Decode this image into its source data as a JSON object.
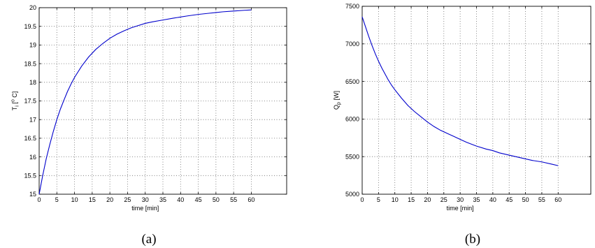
{
  "chart_data": [
    {
      "type": "line",
      "caption": "(a)",
      "xlabel": "time [min]",
      "ylabel": {
        "main": "T",
        "sub": "i",
        "rest": " [",
        "sup": "o",
        "unit": " C]"
      },
      "xlim": [
        0,
        70
      ],
      "ylim": [
        15,
        20
      ],
      "xticks": [
        0,
        5,
        10,
        15,
        20,
        25,
        30,
        35,
        40,
        45,
        50,
        55,
        60
      ],
      "xtick_labels": [
        "0",
        "5",
        "10",
        "15",
        "20",
        "25",
        "30",
        "35",
        "40",
        "45",
        "50",
        "55",
        "60"
      ],
      "yticks": [
        15,
        15.5,
        16,
        16.5,
        17,
        17.5,
        18,
        18.5,
        19,
        19.5,
        20
      ],
      "ytick_labels": [
        "15",
        "15.5",
        "16",
        "16.5",
        "17",
        "17.5",
        "18",
        "18.5",
        "19",
        "19.5",
        "20"
      ],
      "grid": true,
      "line_color": "#0000cc",
      "series": [
        {
          "x": [
            0,
            1,
            2,
            3,
            4,
            5,
            6,
            7,
            8,
            9,
            10,
            12,
            14,
            16,
            18,
            20,
            22,
            24,
            26,
            28,
            30,
            32,
            35,
            38,
            40,
            42,
            45,
            48,
            50,
            52,
            55,
            58,
            60
          ],
          "values": [
            15.0,
            15.5,
            15.95,
            16.33,
            16.68,
            17.0,
            17.28,
            17.52,
            17.75,
            17.95,
            18.13,
            18.43,
            18.68,
            18.88,
            19.04,
            19.18,
            19.29,
            19.38,
            19.46,
            19.52,
            19.58,
            19.62,
            19.67,
            19.72,
            19.75,
            19.78,
            19.82,
            19.85,
            19.87,
            19.89,
            19.91,
            19.93,
            19.94
          ]
        }
      ]
    },
    {
      "type": "line",
      "caption": "(b)",
      "xlabel": "time [min]",
      "ylabel": {
        "main": "Q",
        "sub": "p",
        "rest": " [W]",
        "sup": "",
        "unit": ""
      },
      "xlim": [
        0,
        70
      ],
      "ylim": [
        5000,
        7500
      ],
      "xticks": [
        0,
        5,
        10,
        15,
        20,
        25,
        30,
        35,
        40,
        45,
        50,
        55,
        60
      ],
      "xtick_labels": [
        "0",
        "5",
        "10",
        "15",
        "20",
        "25",
        "30",
        "35",
        "40",
        "45",
        "50",
        "55",
        "60"
      ],
      "yticks": [
        5000,
        5500,
        6000,
        6500,
        7000,
        7500
      ],
      "ytick_labels": [
        "5000",
        "5500",
        "6000",
        "6500",
        "7000",
        "7500"
      ],
      "grid": true,
      "line_color": "#0000cc",
      "series": [
        {
          "x": [
            0,
            1,
            2,
            3,
            4,
            5,
            6,
            7,
            8,
            9,
            10,
            12,
            14,
            16,
            18,
            20,
            22,
            24,
            26,
            28,
            30,
            32,
            35,
            38,
            40,
            42,
            45,
            48,
            50,
            52,
            55,
            58,
            60
          ],
          "values": [
            7360,
            7230,
            7100,
            6980,
            6870,
            6770,
            6680,
            6600,
            6520,
            6450,
            6390,
            6280,
            6180,
            6100,
            6030,
            5960,
            5900,
            5850,
            5810,
            5770,
            5730,
            5690,
            5640,
            5600,
            5580,
            5550,
            5520,
            5490,
            5470,
            5450,
            5430,
            5400,
            5380
          ]
        }
      ]
    }
  ]
}
